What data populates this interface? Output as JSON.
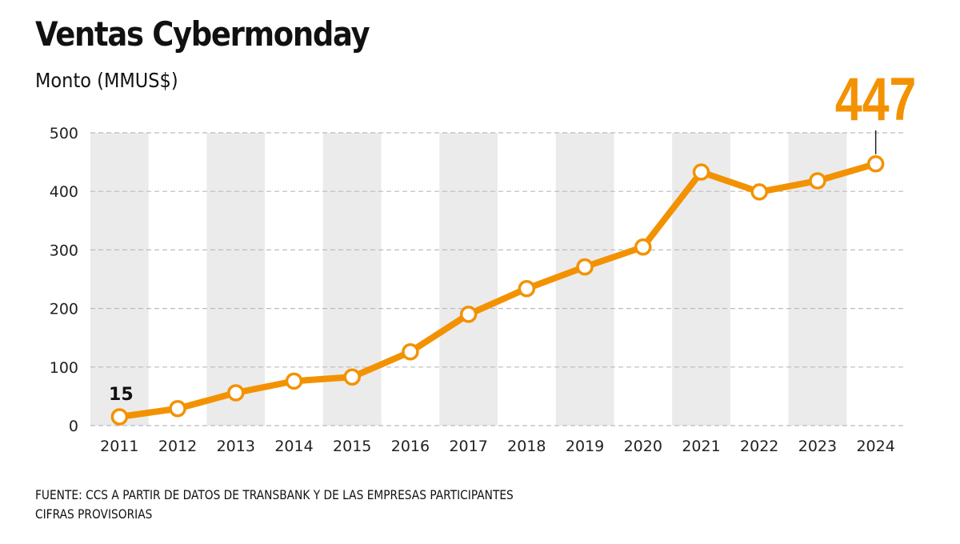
{
  "header": {
    "title": "Ventas Cybermonday",
    "subtitle": "Monto (MMUS$)"
  },
  "footer": {
    "source": "FUENTE: CCS A PARTIR DE DATOS DE TRANSBANK Y DE LAS EMPRESAS PARTICIPANTES",
    "note": "CIFRAS PROVISORIAS"
  },
  "colors": {
    "line": "#f39200",
    "marker_fill": "#ffffff",
    "band": "#ebebeb",
    "grid": "#bbbbbb",
    "leader": "#222222"
  },
  "chart_data": {
    "type": "line",
    "title": "Ventas Cybermonday",
    "subtitle": "Monto (MMUS$)",
    "xlabel": "",
    "ylabel": "Monto (MMUS$)",
    "categories": [
      "2011",
      "2012",
      "2013",
      "2014",
      "2015",
      "2016",
      "2017",
      "2018",
      "2019",
      "2020",
      "2021",
      "2022",
      "2023",
      "2024"
    ],
    "series": [
      {
        "name": "Ventas Cybermonday",
        "values": [
          15,
          29,
          56,
          76,
          83,
          126,
          190,
          234,
          271,
          305,
          433,
          399,
          418,
          447
        ]
      }
    ],
    "ylim": [
      0,
      500
    ],
    "yticks": [
      0,
      100,
      200,
      300,
      400,
      500
    ],
    "grid": true,
    "grid_style": "dashed-horizontal",
    "alternating_bands": true,
    "legend": "none",
    "annotations": [
      {
        "category": "2011",
        "text": "15",
        "style": "bold-dark"
      },
      {
        "category": "2024",
        "text": "447",
        "style": "large-orange-with-leader"
      }
    ]
  }
}
